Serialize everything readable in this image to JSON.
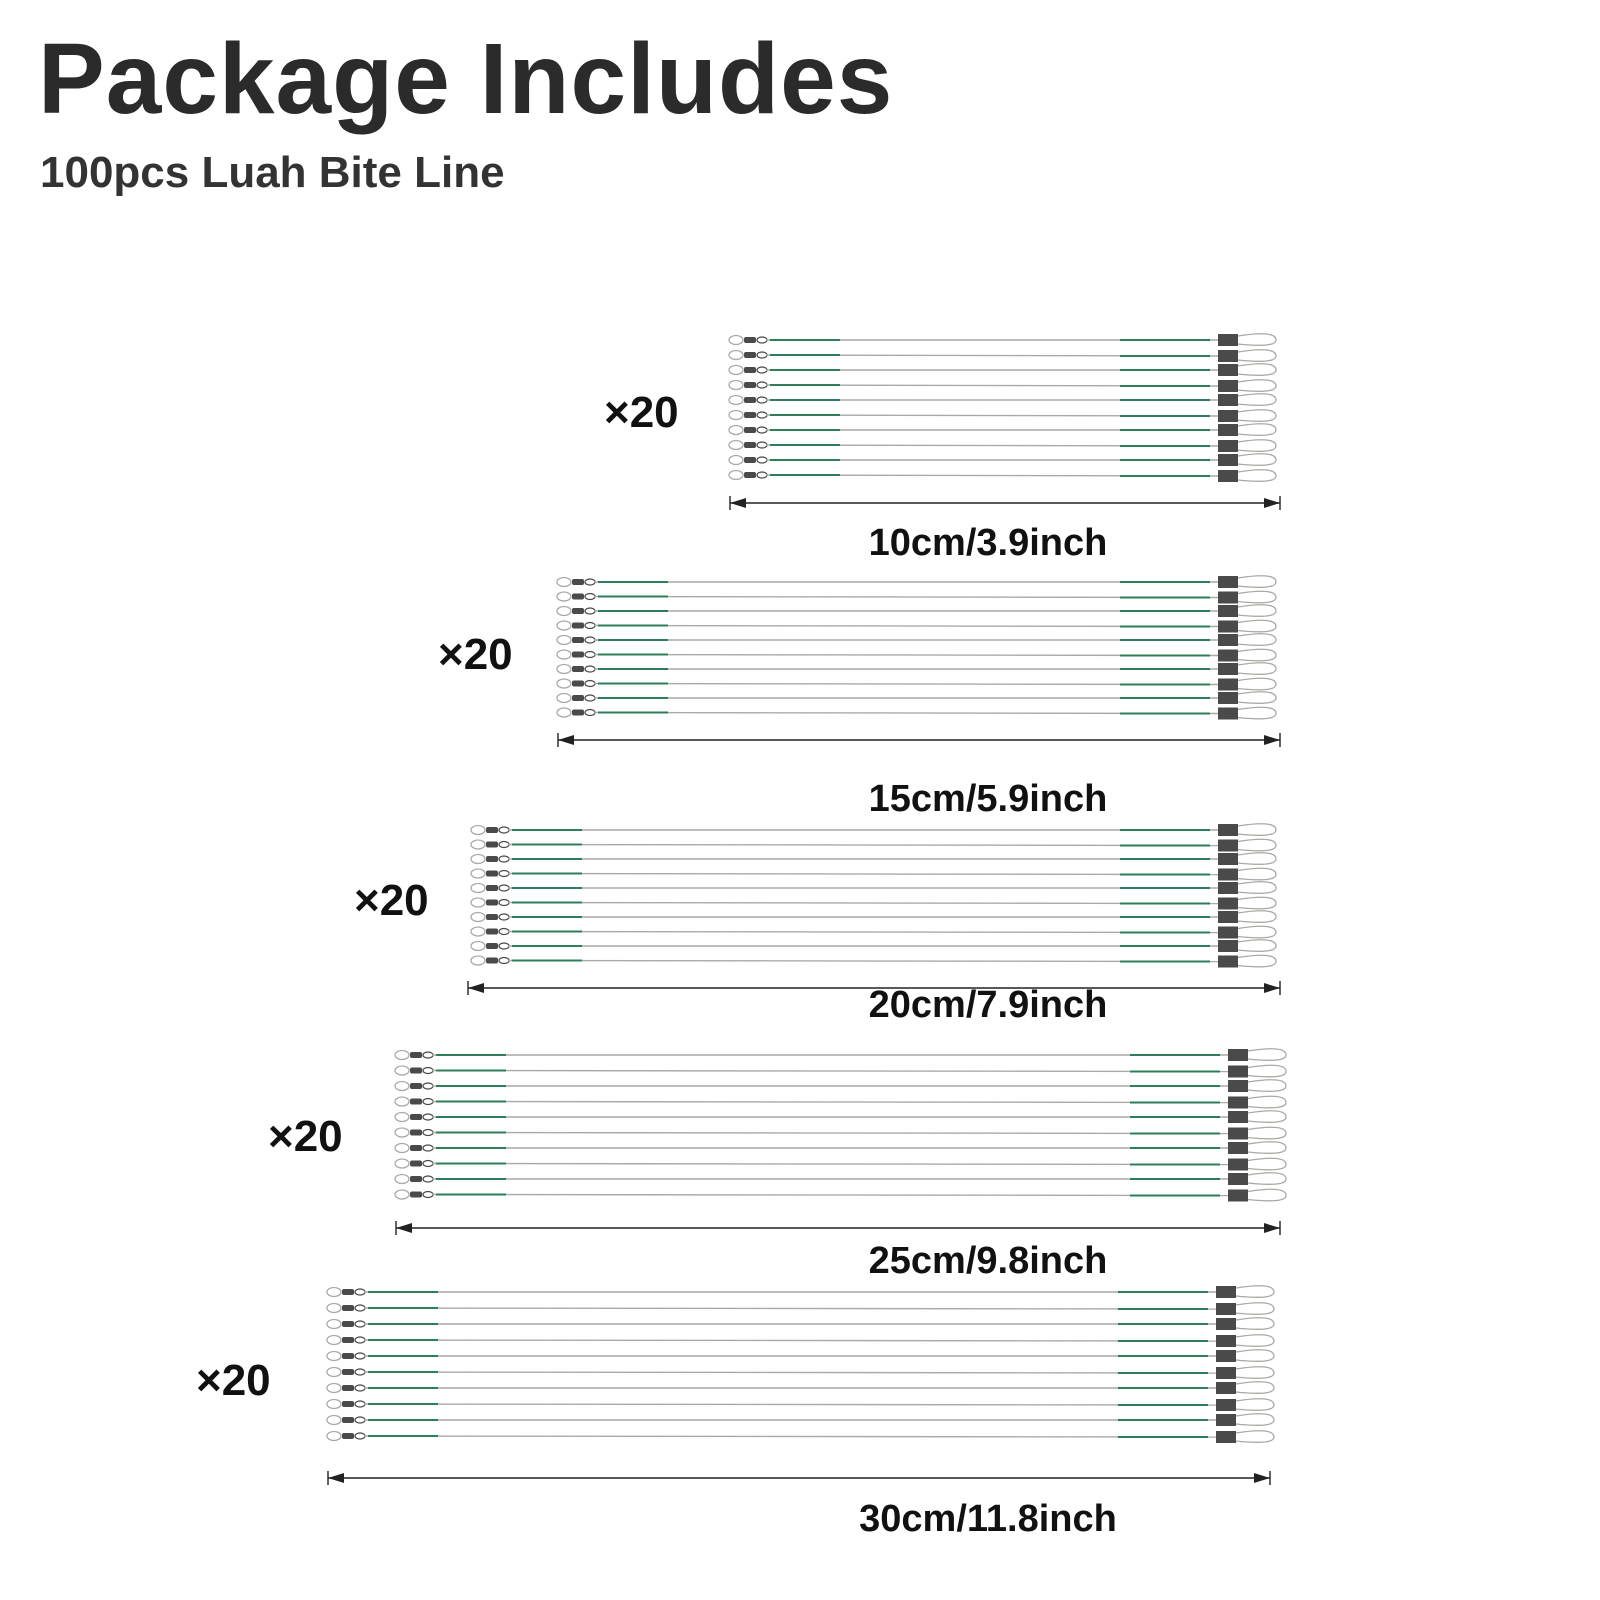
{
  "header": {
    "title": "Package Includes",
    "subtitle": "100pcs Luah Bite Line"
  },
  "colors": {
    "wire": "#a9aaa4",
    "coating": "#2e7d5b",
    "sleeve": "#4a4a4a",
    "dimension_line": "#222222"
  },
  "groups": [
    {
      "quantity": "×20",
      "length_label": "10cm/3.9inch"
    },
    {
      "quantity": "×20",
      "length_label": "15cm/5.9inch"
    },
    {
      "quantity": "×20",
      "length_label": "20cm/7.9inch"
    },
    {
      "quantity": "×20",
      "length_label": "25cm/9.8inch"
    },
    {
      "quantity": "×20",
      "length_label": "30cm/11.8inch"
    }
  ]
}
